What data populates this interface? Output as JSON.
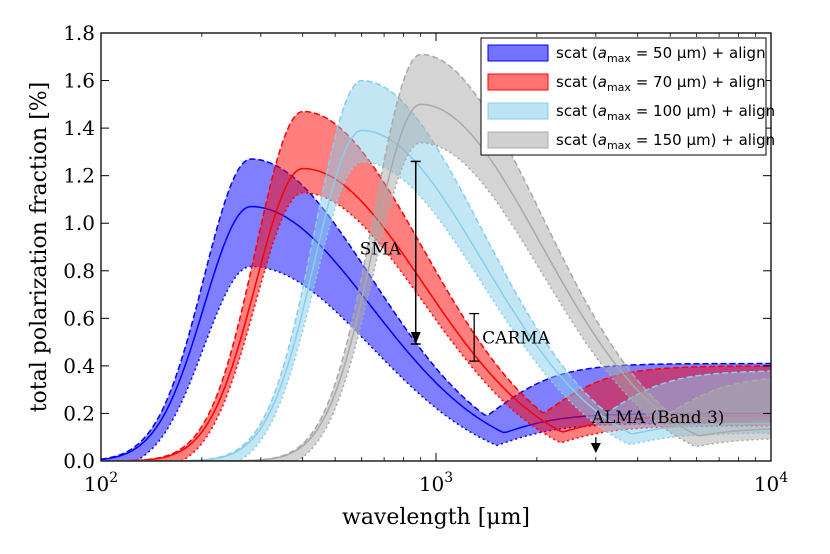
{
  "chart_data": {
    "type": "area",
    "xlabel": "wavelength [μm]",
    "ylabel": "total polarization fraction [%]",
    "xscale": "log",
    "xlim": [
      100,
      10000
    ],
    "ylim": [
      0.0,
      1.8
    ],
    "x_ticks": [
      100,
      1000,
      10000
    ],
    "x_tick_labels": [
      {
        "base": "10",
        "exp": "2"
      },
      {
        "base": "10",
        "exp": "3"
      },
      {
        "base": "10",
        "exp": "4"
      }
    ],
    "y_ticks": [
      0.0,
      0.2,
      0.4,
      0.6,
      0.8,
      1.0,
      1.2,
      1.4,
      1.6,
      1.8
    ],
    "y_tick_labels": [
      "0.0",
      "0.2",
      "0.4",
      "0.6",
      "0.8",
      "1.0",
      "1.2",
      "1.4",
      "1.6",
      "1.8"
    ],
    "legend_position": "top-right",
    "series": [
      {
        "name": "scat (a_max = 50 μm) + align",
        "legend_pre": "scat (",
        "legend_a": "a",
        "legend_sub": "max",
        "legend_eq": " = 50 μm",
        "legend_post": ") + align",
        "color": "#0000ff",
        "peak_wavelength": 280,
        "peak_upper": 1.27,
        "peak_mid": 1.07,
        "peak_lower": 0.86,
        "tail_value": 0.2,
        "tail_upper": 0.41
      },
      {
        "name": "scat (a_max = 70 μm) + align",
        "legend_pre": "scat (",
        "legend_a": "a",
        "legend_sub": "max",
        "legend_eq": " = 70 μm",
        "legend_post": ") + align",
        "color": "#ff0000",
        "peak_wavelength": 400,
        "peak_upper": 1.47,
        "peak_mid": 1.23,
        "peak_lower": 1.17,
        "tail_value": 0.19,
        "tail_upper": 0.4
      },
      {
        "name": "scat (a_max = 100 μm) + align",
        "legend_pre": "scat (",
        "legend_a": "a",
        "legend_sub": "max",
        "legend_eq": " = 100 μm",
        "legend_post": ") + align",
        "color": "#87ceeb",
        "peak_wavelength": 600,
        "peak_upper": 1.6,
        "peak_mid": 1.39,
        "peak_lower": 1.3,
        "tail_value": 0.16,
        "tail_upper": 0.38
      },
      {
        "name": "scat (a_max = 150 μm) + align",
        "legend_pre": "scat (",
        "legend_a": "a",
        "legend_sub": "max",
        "legend_eq": " = 150 μm",
        "legend_post": ") + align",
        "color": "#a9a9a9",
        "peak_wavelength": 900,
        "peak_upper": 1.71,
        "peak_mid": 1.5,
        "peak_lower": 1.38,
        "tail_value": 0.14,
        "tail_upper": 0.36
      }
    ],
    "annotations": [
      {
        "name": "sma",
        "text": "SMA",
        "x": 870,
        "y_top": 1.26,
        "y_bottom": 0.45,
        "style": "errorbar-arrow"
      },
      {
        "name": "carma",
        "text": "CARMA",
        "x": 1300,
        "y_top": 0.62,
        "y_bottom": 0.42,
        "style": "errorbar"
      },
      {
        "name": "alma",
        "text": "ALMA (Band 3)",
        "x": 3000,
        "y_top": 0.1,
        "y_bottom": 0.0,
        "style": "arrow"
      }
    ]
  }
}
